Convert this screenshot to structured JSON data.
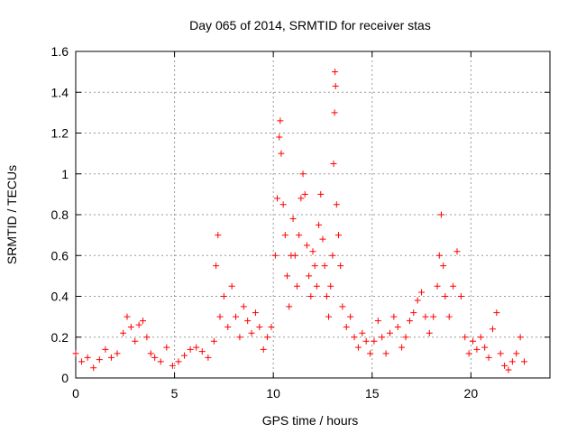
{
  "chart_data": {
    "type": "scatter",
    "title": "Day 065 of 2014, SRMTID for receiver stas",
    "xlabel": "GPS time / hours",
    "ylabel": "SRMTID / TECUs",
    "xlim": [
      0,
      24
    ],
    "ylim": [
      0,
      1.6
    ],
    "x_ticks": [
      0,
      5,
      10,
      15,
      20
    ],
    "x_tick_labels": [
      "0",
      "5",
      "10",
      "15",
      "20"
    ],
    "y_ticks": [
      0,
      0.2,
      0.4,
      0.6,
      0.8,
      1.0,
      1.2,
      1.4,
      1.6
    ],
    "y_tick_labels": [
      "0",
      "0.2",
      "0.4",
      "0.6",
      "0.8",
      "1",
      "1.2",
      "1.4",
      "1.6"
    ],
    "grid": true,
    "marker": "+",
    "marker_color": "#ff0000",
    "series": [
      {
        "name": "stas",
        "points": [
          [
            0.0,
            0.12
          ],
          [
            0.3,
            0.08
          ],
          [
            0.6,
            0.1
          ],
          [
            0.9,
            0.05
          ],
          [
            1.2,
            0.09
          ],
          [
            1.5,
            0.14
          ],
          [
            1.8,
            0.1
          ],
          [
            2.1,
            0.12
          ],
          [
            2.4,
            0.22
          ],
          [
            2.6,
            0.3
          ],
          [
            2.8,
            0.25
          ],
          [
            3.0,
            0.18
          ],
          [
            3.2,
            0.26
          ],
          [
            3.4,
            0.28
          ],
          [
            3.6,
            0.2
          ],
          [
            3.8,
            0.12
          ],
          [
            4.0,
            0.1
          ],
          [
            4.3,
            0.08
          ],
          [
            4.6,
            0.15
          ],
          [
            4.9,
            0.06
          ],
          [
            5.2,
            0.08
          ],
          [
            5.5,
            0.11
          ],
          [
            5.8,
            0.14
          ],
          [
            6.1,
            0.15
          ],
          [
            6.4,
            0.13
          ],
          [
            6.7,
            0.1
          ],
          [
            7.0,
            0.18
          ],
          [
            7.1,
            0.55
          ],
          [
            7.2,
            0.7
          ],
          [
            7.3,
            0.3
          ],
          [
            7.5,
            0.4
          ],
          [
            7.7,
            0.25
          ],
          [
            7.9,
            0.45
          ],
          [
            8.1,
            0.3
          ],
          [
            8.3,
            0.2
          ],
          [
            8.5,
            0.35
          ],
          [
            8.7,
            0.28
          ],
          [
            8.9,
            0.22
          ],
          [
            9.1,
            0.32
          ],
          [
            9.3,
            0.25
          ],
          [
            9.5,
            0.14
          ],
          [
            9.7,
            0.2
          ],
          [
            9.9,
            0.25
          ],
          [
            10.1,
            0.6
          ],
          [
            10.2,
            0.88
          ],
          [
            10.3,
            1.18
          ],
          [
            10.35,
            1.26
          ],
          [
            10.4,
            1.1
          ],
          [
            10.5,
            0.85
          ],
          [
            10.6,
            0.7
          ],
          [
            10.7,
            0.5
          ],
          [
            10.8,
            0.35
          ],
          [
            10.9,
            0.6
          ],
          [
            11.0,
            0.78
          ],
          [
            11.1,
            0.6
          ],
          [
            11.2,
            0.45
          ],
          [
            11.3,
            0.7
          ],
          [
            11.4,
            0.88
          ],
          [
            11.5,
            1.0
          ],
          [
            11.6,
            0.9
          ],
          [
            11.7,
            0.65
          ],
          [
            11.8,
            0.5
          ],
          [
            11.9,
            0.4
          ],
          [
            12.0,
            0.62
          ],
          [
            12.1,
            0.55
          ],
          [
            12.2,
            0.45
          ],
          [
            12.3,
            0.75
          ],
          [
            12.4,
            0.9
          ],
          [
            12.5,
            0.68
          ],
          [
            12.6,
            0.55
          ],
          [
            12.7,
            0.4
          ],
          [
            12.8,
            0.3
          ],
          [
            12.9,
            0.45
          ],
          [
            13.0,
            0.6
          ],
          [
            13.05,
            1.05
          ],
          [
            13.1,
            1.3
          ],
          [
            13.12,
            1.5
          ],
          [
            13.15,
            1.43
          ],
          [
            13.2,
            0.85
          ],
          [
            13.3,
            0.7
          ],
          [
            13.4,
            0.55
          ],
          [
            13.5,
            0.35
          ],
          [
            13.7,
            0.25
          ],
          [
            13.9,
            0.3
          ],
          [
            14.1,
            0.2
          ],
          [
            14.3,
            0.15
          ],
          [
            14.5,
            0.22
          ],
          [
            14.7,
            0.18
          ],
          [
            14.9,
            0.12
          ],
          [
            15.1,
            0.18
          ],
          [
            15.3,
            0.28
          ],
          [
            15.5,
            0.2
          ],
          [
            15.7,
            0.12
          ],
          [
            15.9,
            0.22
          ],
          [
            16.1,
            0.3
          ],
          [
            16.3,
            0.25
          ],
          [
            16.5,
            0.15
          ],
          [
            16.7,
            0.2
          ],
          [
            16.9,
            0.28
          ],
          [
            17.1,
            0.32
          ],
          [
            17.3,
            0.38
          ],
          [
            17.5,
            0.42
          ],
          [
            17.7,
            0.3
          ],
          [
            17.9,
            0.22
          ],
          [
            18.1,
            0.3
          ],
          [
            18.3,
            0.45
          ],
          [
            18.4,
            0.6
          ],
          [
            18.5,
            0.8
          ],
          [
            18.6,
            0.55
          ],
          [
            18.7,
            0.4
          ],
          [
            18.9,
            0.3
          ],
          [
            19.1,
            0.45
          ],
          [
            19.3,
            0.62
          ],
          [
            19.5,
            0.4
          ],
          [
            19.7,
            0.2
          ],
          [
            19.9,
            0.12
          ],
          [
            20.1,
            0.18
          ],
          [
            20.3,
            0.14
          ],
          [
            20.5,
            0.2
          ],
          [
            20.7,
            0.15
          ],
          [
            20.9,
            0.1
          ],
          [
            21.1,
            0.24
          ],
          [
            21.3,
            0.32
          ],
          [
            21.5,
            0.12
          ],
          [
            21.7,
            0.06
          ],
          [
            21.9,
            0.04
          ],
          [
            22.1,
            0.08
          ],
          [
            22.3,
            0.12
          ],
          [
            22.5,
            0.2
          ],
          [
            22.7,
            0.08
          ]
        ]
      }
    ]
  }
}
